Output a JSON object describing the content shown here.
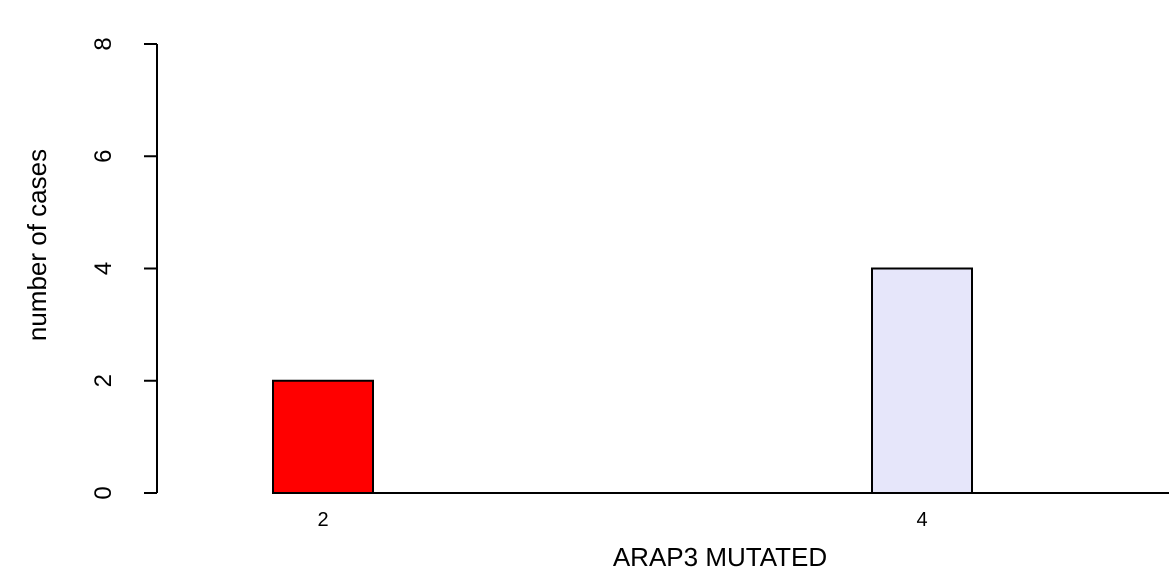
{
  "chart_data": {
    "type": "bar",
    "categories": [
      "2",
      "4"
    ],
    "values": [
      2,
      4
    ],
    "colors": [
      "#FF0000",
      "#E6E6FA"
    ],
    "xlabel": "ARAP3 MUTATED",
    "ylabel": "number of cases",
    "ylim": [
      0,
      8
    ],
    "yticks": [
      "0",
      "2",
      "4",
      "6",
      "8"
    ],
    "grid": false,
    "legend": "none"
  }
}
